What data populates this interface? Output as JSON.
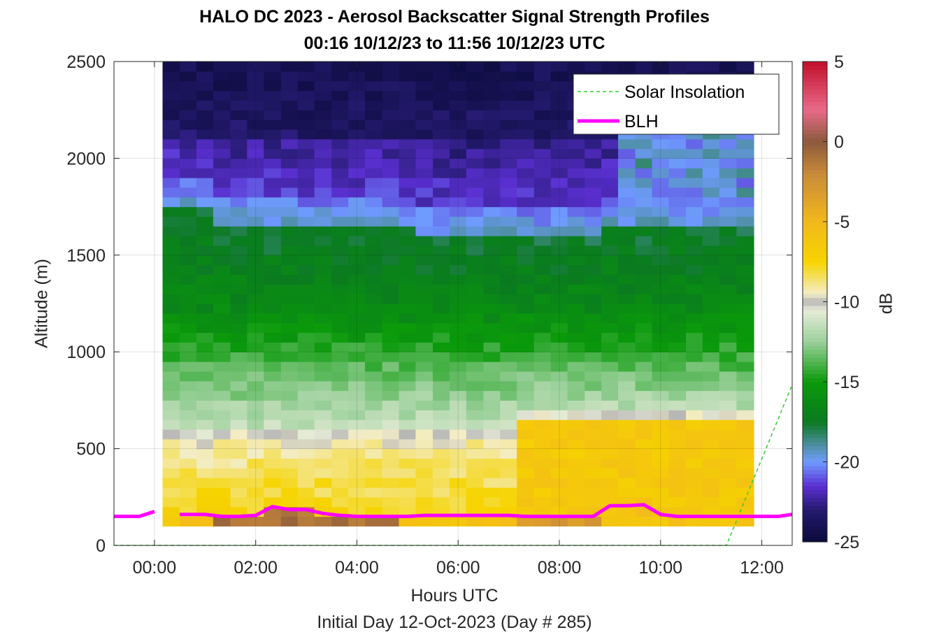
{
  "chart_data": {
    "type": "heatmap",
    "title": "HALO DC 2023 - Aerosol Backscatter Signal Strength Profiles",
    "subtitle": "00:16 10/12/23 to 11:56 10/12/23  UTC",
    "xlabel": "Hours UTC",
    "x_sublabel": "Initial Day 12-Oct-2023 (Day # 285)",
    "ylabel": "Altitude (m)",
    "colorbar_label": "dB",
    "xlim_hours": [
      -0.8,
      12.6
    ],
    "ylim": [
      0,
      2500
    ],
    "x_tick_labels": [
      "00:00",
      "02:00",
      "04:00",
      "06:00",
      "08:00",
      "10:00",
      "12:00"
    ],
    "x_ticks_hours": [
      0,
      2,
      4,
      6,
      8,
      10,
      12
    ],
    "y_ticks": [
      0,
      500,
      1000,
      1500,
      2000,
      2500
    ],
    "y_tick_labels": [
      "0",
      "500",
      "1000",
      "1500",
      "2000",
      "2500"
    ],
    "clim": [
      -25,
      5
    ],
    "colorbar_ticks": [
      5,
      0,
      -5,
      -10,
      -15,
      -20,
      -25
    ],
    "colorbar_tick_labels": [
      "5",
      "0",
      "-5",
      "-10",
      "-15",
      "-20",
      "-25"
    ],
    "grid": true,
    "legend_position": "top-right",
    "legend": [
      "Solar Insolation",
      "BLH"
    ],
    "data_time_range_hours": [
      0.2667,
      11.9333
    ],
    "data_altitude_range_m": [
      100,
      2500
    ],
    "cell_height_m": 50,
    "columns_time_hours": [
      0.33,
      0.67,
      1.0,
      1.33,
      1.67,
      2.0,
      2.33,
      2.67,
      3.0,
      3.33,
      3.67,
      4.0,
      4.33,
      4.67,
      5.0,
      5.33,
      5.67,
      6.0,
      6.33,
      6.67,
      7.0,
      7.33,
      7.67,
      8.0,
      8.33,
      8.67,
      9.0,
      9.33,
      9.67,
      10.0,
      10.33,
      10.67,
      11.0,
      11.33,
      11.67
    ],
    "profile_layer_tops_m": {
      "signal_strength_column_example_dB": {
        "altitude_m": [
          150,
          300,
          500,
          700,
          900,
          1100,
          1300,
          1500,
          1700,
          1900,
          2100,
          2300,
          2500
        ],
        "value_dB": [
          -5,
          -6,
          -8,
          -11,
          -13,
          -15,
          -16,
          -16,
          -17,
          -22,
          -22,
          -23,
          -24
        ]
      }
    },
    "blh_series": {
      "name": "BLH",
      "color": "#ff00ff",
      "x_hours": [
        -0.8,
        -0.3,
        0.0,
        0.33,
        0.5,
        0.67,
        1.0,
        1.33,
        1.67,
        2.0,
        2.33,
        2.67,
        3.0,
        3.33,
        3.67,
        4.0,
        4.33,
        4.67,
        5.0,
        5.33,
        5.67,
        6.0,
        6.33,
        6.67,
        7.0,
        7.33,
        7.67,
        8.0,
        8.33,
        8.67,
        9.0,
        9.33,
        9.67,
        10.0,
        10.33,
        10.67,
        11.0,
        11.33,
        11.67,
        12.0,
        12.33,
        12.6
      ],
      "y_m": [
        150,
        150,
        175,
        null,
        160,
        160,
        160,
        150,
        150,
        155,
        200,
        185,
        185,
        165,
        155,
        150,
        150,
        150,
        150,
        155,
        155,
        155,
        155,
        155,
        155,
        150,
        150,
        150,
        150,
        150,
        205,
        205,
        210,
        160,
        150,
        150,
        150,
        150,
        150,
        150,
        150,
        160
      ]
    },
    "solar_series": {
      "name": "Solar Insolation",
      "color": "#33cc33",
      "x_hours": [
        -0.8,
        11.3,
        12.6
      ],
      "y_m": [
        0,
        0,
        830
      ]
    }
  },
  "colors": {
    "colormap_stops": [
      {
        "dB": -25,
        "hex": "#0a0a3a"
      },
      {
        "dB": -23,
        "hex": "#241a6e"
      },
      {
        "dB": -21.5,
        "hex": "#5a2fd0"
      },
      {
        "dB": -20,
        "hex": "#6f9bff"
      },
      {
        "dB": -19,
        "hex": "#4f8fa6"
      },
      {
        "dB": -17.5,
        "hex": "#0a7a20"
      },
      {
        "dB": -15,
        "hex": "#0a9a0a"
      },
      {
        "dB": -12.5,
        "hex": "#9ad09a"
      },
      {
        "dB": -10.5,
        "hex": "#e8ecd8"
      },
      {
        "dB": -10,
        "hex": "#b4b4b4"
      },
      {
        "dB": -9.5,
        "hex": "#f3edc8"
      },
      {
        "dB": -7.5,
        "hex": "#f6d400"
      },
      {
        "dB": -5,
        "hex": "#f3b81c"
      },
      {
        "dB": -2,
        "hex": "#c98a3a"
      },
      {
        "dB": 0,
        "hex": "#8c5a3c"
      },
      {
        "dB": 2,
        "hex": "#e96a8a"
      },
      {
        "dB": 5,
        "hex": "#c0102a"
      }
    ]
  }
}
